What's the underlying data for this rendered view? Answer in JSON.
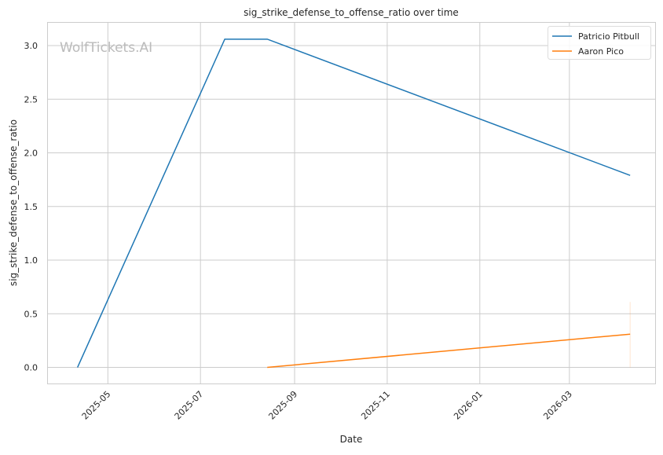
{
  "watermark": "WolfTickets.AI",
  "chart_data": {
    "type": "line",
    "title": "sig_strike_defense_to_offense_ratio over time",
    "xlabel": "Date",
    "ylabel": "sig_strike_defense_to_offense_ratio",
    "xlim": [
      "2025-03-22",
      "2026-04-27"
    ],
    "ylim": [
      -0.15,
      3.22
    ],
    "xticks": [
      "2025-05",
      "2025-07",
      "2025-09",
      "2025-11",
      "2026-01",
      "2026-03"
    ],
    "yticks": [
      0.0,
      0.5,
      1.0,
      1.5,
      2.0,
      2.5,
      3.0
    ],
    "ytick_labels": [
      "0.0",
      "0.5",
      "1.0",
      "1.5",
      "2.0",
      "2.5",
      "3.0"
    ],
    "grid": true,
    "legend_position": "top-right",
    "series": [
      {
        "name": "Patricio Pitbull",
        "color": "#1f77b4",
        "points": [
          [
            "2025-04-11",
            0.0
          ],
          [
            "2025-07-17",
            3.06
          ],
          [
            "2025-08-14",
            3.06
          ],
          [
            "2026-04-10",
            1.79
          ]
        ]
      },
      {
        "name": "Aaron Pico",
        "color": "#ff7f0e",
        "points": [
          [
            "2025-08-14",
            0.0
          ],
          [
            "2026-04-10",
            0.31
          ]
        ],
        "band": {
          "date": "2026-04-10",
          "low": 0.0,
          "high": 0.61
        }
      }
    ]
  }
}
